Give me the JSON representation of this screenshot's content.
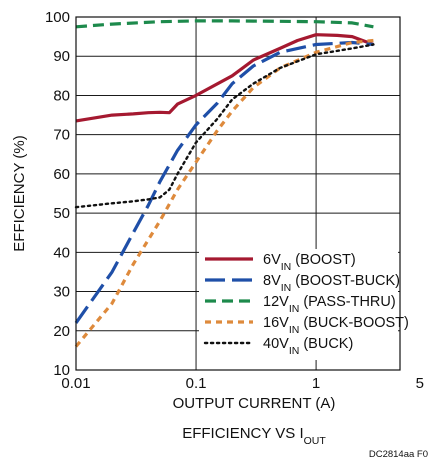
{
  "chart_data": {
    "type": "line",
    "title": "EFFICIENCY VS I",
    "title_sub": "OUT",
    "xlabel": "OUTPUT CURRENT (A)",
    "ylabel": "EFFICIENCY (%)",
    "figure_code": "DC2814aa F0",
    "x_scale": "log",
    "xlim": [
      0.01,
      5
    ],
    "ylim": [
      10,
      100
    ],
    "x_ticks": [
      0.01,
      0.1,
      1,
      5
    ],
    "x_tick_labels": [
      "0.01",
      "0.1",
      "1",
      "5"
    ],
    "y_ticks": [
      10,
      20,
      30,
      40,
      50,
      60,
      70,
      80,
      90,
      100
    ],
    "y_tick_labels": [
      "10",
      "20",
      "30",
      "40",
      "50",
      "60",
      "70",
      "80",
      "90",
      "100"
    ],
    "grid": true,
    "legend_position": "bottom-right",
    "series": [
      {
        "name": "6V",
        "name_sub": "IN",
        "name_suffix": " (BOOST)",
        "color": "#a51930",
        "dash": "solid",
        "x": [
          0.01,
          0.02,
          0.03,
          0.04,
          0.05,
          0.06,
          0.07,
          0.1,
          0.2,
          0.3,
          0.5,
          0.7,
          1,
          1.5,
          2,
          3
        ],
        "y": [
          73.5,
          75,
          75.3,
          75.6,
          75.7,
          75.6,
          77.8,
          80,
          85,
          89,
          92,
          94,
          95.5,
          95.3,
          95,
          93
        ]
      },
      {
        "name": "8V",
        "name_sub": "IN",
        "name_suffix": " (BOOST-BUCK)",
        "color": "#1f4fa8",
        "dash": "longdash",
        "x": [
          0.01,
          0.02,
          0.03,
          0.04,
          0.05,
          0.07,
          0.1,
          0.15,
          0.2,
          0.3,
          0.5,
          1,
          2,
          3
        ],
        "y": [
          22,
          35,
          45,
          52,
          58,
          66,
          72.5,
          78,
          83,
          87.5,
          91,
          93,
          93.5,
          93
        ]
      },
      {
        "name": "12V",
        "name_sub": "IN",
        "name_suffix": " (PASS-THRU)",
        "color": "#1d8a4c",
        "dash": "dash",
        "x": [
          0.01,
          0.02,
          0.05,
          0.1,
          0.2,
          0.5,
          1,
          2,
          3
        ],
        "y": [
          97.5,
          98.2,
          98.8,
          99,
          99,
          98.9,
          98.8,
          98.5,
          97.5
        ]
      },
      {
        "name": "16V",
        "name_sub": "IN",
        "name_suffix": " (BUCK-BOOST)",
        "color": "#de8a3c",
        "dash": "shortdash",
        "x": [
          0.01,
          0.02,
          0.03,
          0.05,
          0.07,
          0.1,
          0.15,
          0.2,
          0.3,
          0.5,
          1,
          2,
          3
        ],
        "y": [
          16,
          27,
          37,
          48,
          56,
          63,
          71,
          76,
          82,
          87,
          91,
          93.5,
          94
        ]
      },
      {
        "name": "40V",
        "name_sub": "IN",
        "name_suffix": " (BUCK)",
        "color": "#111111",
        "dash": "dot",
        "x": [
          0.01,
          0.02,
          0.03,
          0.04,
          0.05,
          0.06,
          0.07,
          0.1,
          0.15,
          0.2,
          0.3,
          0.5,
          1,
          2,
          3
        ],
        "y": [
          51.5,
          52.5,
          53,
          53.5,
          54,
          56,
          60,
          68,
          74,
          79,
          83,
          87,
          90.5,
          92,
          93
        ]
      }
    ]
  }
}
